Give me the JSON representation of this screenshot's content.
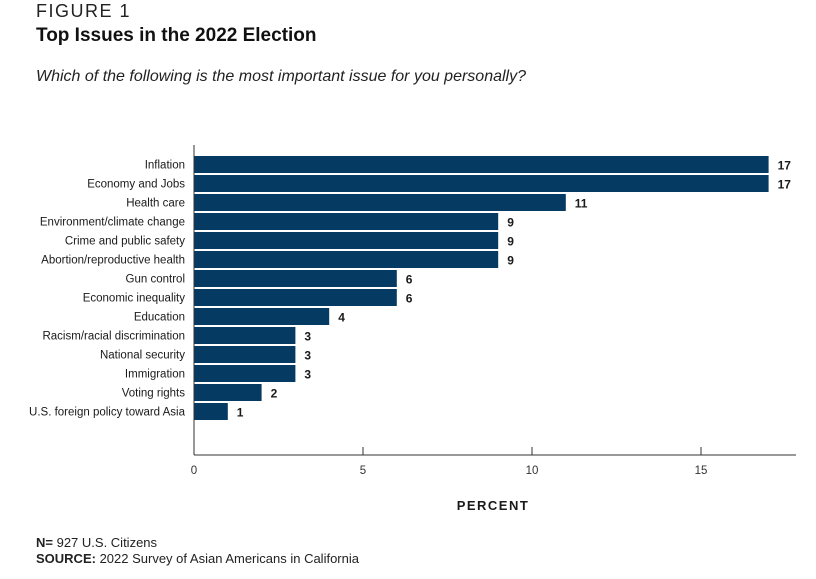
{
  "figure_label": "FIGURE 1",
  "title": "Top Issues in the 2022 Election",
  "subtitle": "Which of the following is the most important issue for you personally?",
  "notes": {
    "n_label": "N=",
    "n_value": " 927 U.S. Citizens",
    "source_label": "SOURCE:",
    "source_value": " 2022 Survey of Asian Americans in California"
  },
  "colors": {
    "bar": "#053a63",
    "axis": "#333333",
    "text": "#1a1a1a"
  },
  "chart_data": {
    "type": "bar",
    "orientation": "horizontal",
    "title": "Top Issues in the 2022 Election",
    "subtitle": "Which of the following is the most important issue for you personally?",
    "xlabel": "PERCENT",
    "ylabel": "",
    "xlim": [
      0,
      18
    ],
    "xticks": [
      0,
      5,
      10,
      15
    ],
    "grid": false,
    "legend": "none",
    "categories": [
      "Inflation",
      "Economy and Jobs",
      "Health care",
      "Environment/climate change",
      "Crime and public safety",
      "Abortion/reproductive health",
      "Gun control",
      "Economic inequality",
      "Education",
      "Racism/racial discrimination",
      "National security",
      "Immigration",
      "Voting rights",
      "U.S. foreign policy toward Asia"
    ],
    "values": [
      17,
      17,
      11,
      9,
      9,
      9,
      6,
      6,
      4,
      3,
      3,
      3,
      2,
      1
    ]
  }
}
